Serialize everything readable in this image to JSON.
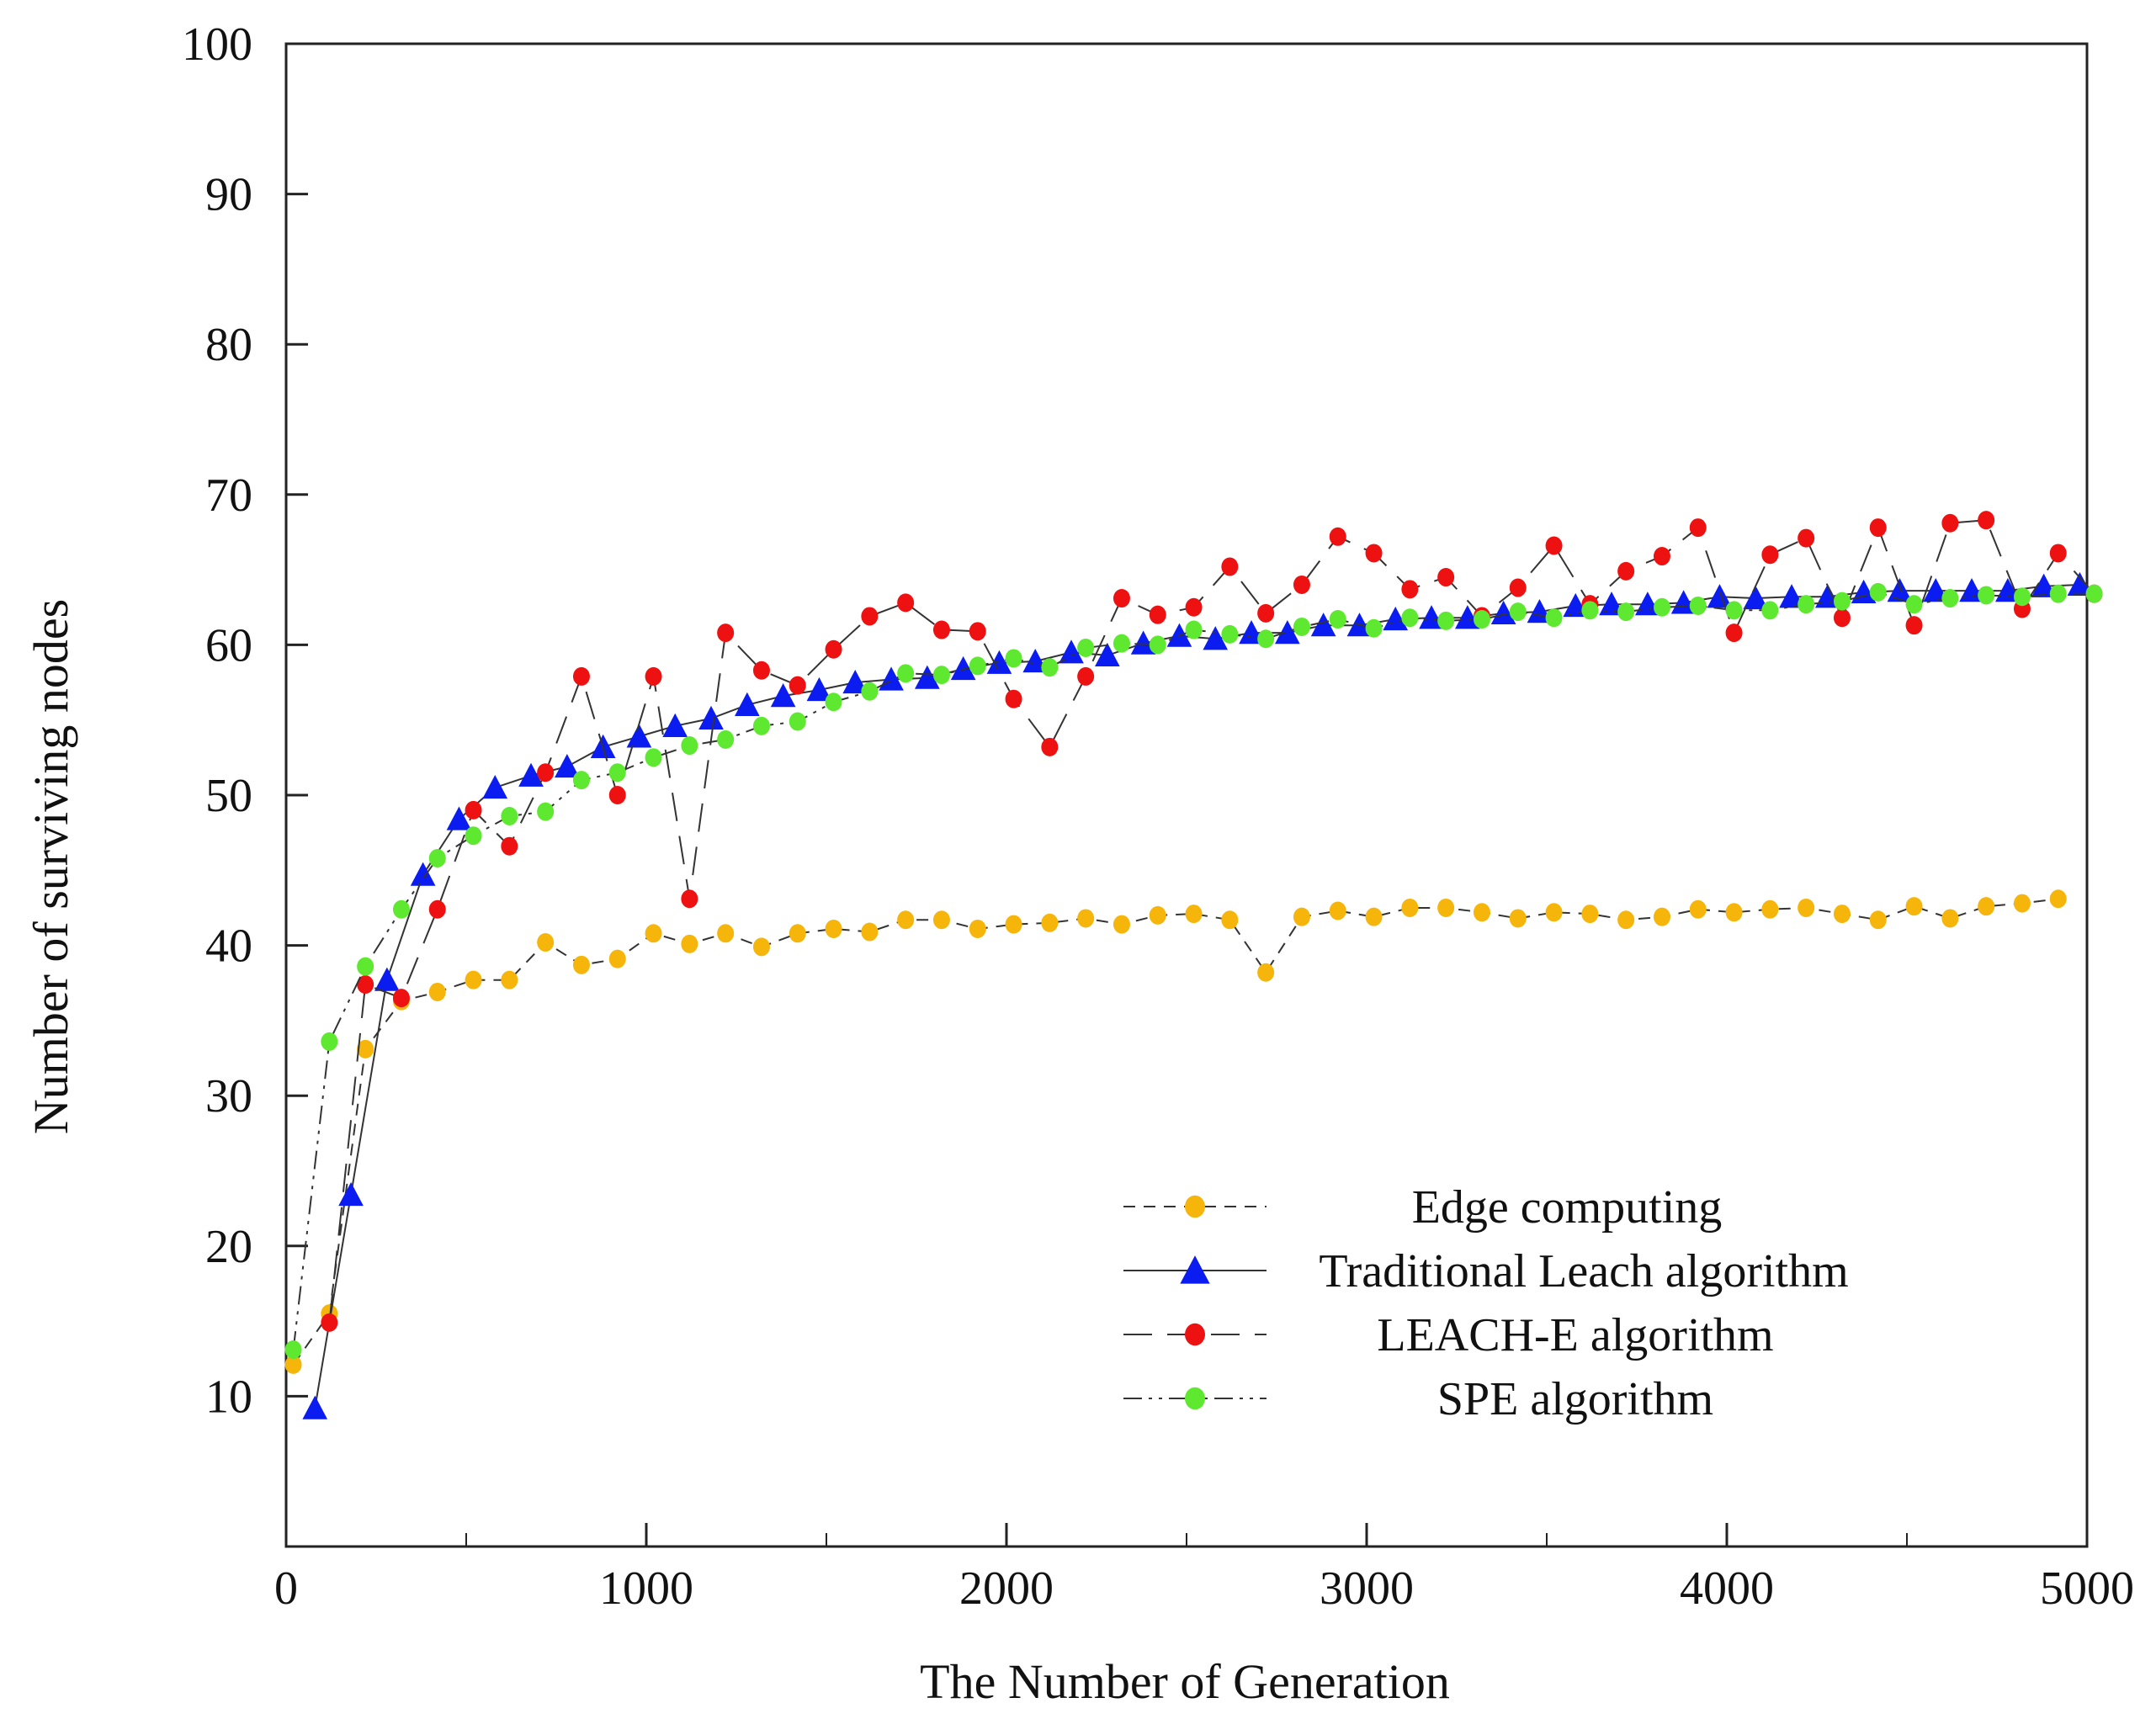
{
  "chart_data": {
    "type": "line",
    "title": "",
    "xlabel": "The Number of Generation",
    "ylabel": "Number of surviving nodes",
    "xlim": [
      0,
      5000
    ],
    "ylim": [
      0,
      100
    ],
    "xticks": [
      0,
      1000,
      2000,
      3000,
      4000,
      5000
    ],
    "yticks": [
      10,
      20,
      30,
      40,
      50,
      60,
      70,
      80,
      90,
      100
    ],
    "xtick_labels": [
      "0",
      "1000",
      "2000",
      "3000",
      "4000",
      "5000"
    ],
    "ytick_labels": [
      "10",
      "20",
      "30",
      "40",
      "50",
      "60",
      "70",
      "80",
      "90",
      "100"
    ],
    "grid": false,
    "legend_position": "lower-right",
    "series": [
      {
        "name": "Edge computing",
        "color": "#f5b50a",
        "marker": "circle",
        "dash": "dashed",
        "x": [
          20,
          120,
          220,
          320,
          420,
          520,
          620,
          720,
          820,
          920,
          1020,
          1120,
          1220,
          1320,
          1420,
          1520,
          1620,
          1720,
          1820,
          1920,
          2020,
          2120,
          2220,
          2320,
          2420,
          2520,
          2620,
          2720,
          2820,
          2920,
          3020,
          3120,
          3220,
          3320,
          3420,
          3520,
          3620,
          3720,
          3820,
          3920,
          4020,
          4120,
          4220,
          4320,
          4420,
          4520,
          4620,
          4720,
          4820,
          4920
        ],
        "values": [
          12.1,
          15.5,
          33.1,
          36.3,
          36.9,
          37.7,
          37.7,
          40.2,
          38.7,
          39.1,
          40.8,
          40.1,
          40.8,
          39.9,
          40.8,
          41.1,
          40.9,
          41.7,
          41.7,
          41.1,
          41.4,
          41.5,
          41.8,
          41.4,
          42.0,
          42.1,
          41.7,
          38.2,
          41.9,
          42.3,
          41.9,
          42.5,
          42.5,
          42.2,
          41.8,
          42.2,
          42.1,
          41.7,
          41.9,
          42.4,
          42.2,
          42.4,
          42.5,
          42.1,
          41.7,
          42.6,
          41.8,
          42.6,
          42.8,
          43.1
        ]
      },
      {
        "name": "Traditional Leach algorithm",
        "color": "#0a1cf0",
        "marker": "triangle",
        "dash": "solid",
        "x": [
          80,
          180,
          280,
          380,
          480,
          580,
          680,
          780,
          880,
          980,
          1080,
          1180,
          1280,
          1380,
          1480,
          1580,
          1680,
          1780,
          1880,
          1980,
          2080,
          2180,
          2280,
          2380,
          2480,
          2580,
          2680,
          2780,
          2880,
          2980,
          3080,
          3180,
          3280,
          3380,
          3480,
          3580,
          3680,
          3780,
          3880,
          3980,
          4080,
          4180,
          4280,
          4380,
          4480,
          4580,
          4680,
          4780,
          4880,
          4980
        ],
        "values": [
          9.2,
          23.4,
          37.7,
          44.7,
          48.4,
          50.5,
          51.3,
          51.9,
          53.2,
          53.9,
          54.6,
          55.1,
          56.0,
          56.6,
          57.0,
          57.5,
          57.7,
          57.8,
          58.4,
          58.8,
          58.9,
          59.5,
          59.3,
          60.1,
          60.6,
          60.4,
          60.8,
          60.8,
          61.3,
          61.3,
          61.7,
          61.8,
          61.8,
          62.1,
          62.2,
          62.6,
          62.7,
          62.7,
          62.8,
          63.2,
          63.1,
          63.2,
          63.2,
          63.5,
          63.6,
          63.6,
          63.6,
          63.6,
          63.9,
          64.0
        ]
      },
      {
        "name": "LEACH-E algorithm",
        "color": "#ee1111",
        "marker": "circle",
        "dash": "long-dash",
        "x": [
          120,
          220,
          320,
          420,
          520,
          620,
          720,
          820,
          920,
          1020,
          1120,
          1220,
          1320,
          1420,
          1520,
          1620,
          1720,
          1820,
          1920,
          2020,
          2120,
          2220,
          2320,
          2420,
          2520,
          2620,
          2720,
          2820,
          2920,
          3020,
          3120,
          3220,
          3320,
          3420,
          3520,
          3620,
          3720,
          3820,
          3920,
          4020,
          4120,
          4220,
          4320,
          4420,
          4520,
          4620,
          4720,
          4820,
          4920,
          5020
        ],
        "values": [
          14.9,
          37.4,
          36.5,
          42.4,
          49.0,
          46.6,
          51.5,
          57.9,
          50.0,
          57.9,
          43.1,
          60.8,
          58.3,
          57.3,
          59.7,
          61.9,
          62.8,
          61.0,
          60.9,
          56.4,
          53.2,
          57.9,
          63.1,
          62.0,
          62.5,
          65.2,
          62.1,
          64.0,
          67.2,
          66.1,
          63.7,
          64.5,
          61.9,
          63.8,
          66.6,
          62.7,
          64.9,
          65.9,
          67.8,
          60.8,
          66.0,
          67.1,
          61.8,
          67.8,
          61.3,
          68.1,
          68.3,
          62.4,
          66.1,
          63.4
        ]
      },
      {
        "name": "SPE algorithm",
        "color": "#5ee830",
        "marker": "circle",
        "dash": "dash-dot-dot",
        "x": [
          20,
          120,
          220,
          320,
          420,
          520,
          620,
          720,
          820,
          920,
          1020,
          1120,
          1220,
          1320,
          1420,
          1520,
          1620,
          1720,
          1820,
          1920,
          2020,
          2120,
          2220,
          2320,
          2420,
          2520,
          2620,
          2720,
          2820,
          2920,
          3020,
          3120,
          3220,
          3320,
          3420,
          3520,
          3620,
          3720,
          3820,
          3920,
          4020,
          4120,
          4220,
          4320,
          4420,
          4520,
          4620,
          4720,
          4820,
          4920,
          5020
        ],
        "values": [
          13.1,
          33.6,
          38.6,
          42.4,
          45.8,
          47.3,
          48.6,
          48.9,
          51.0,
          51.5,
          52.5,
          53.3,
          53.7,
          54.6,
          54.9,
          56.2,
          56.9,
          58.1,
          58.0,
          58.6,
          59.1,
          58.5,
          59.8,
          60.1,
          60.0,
          61.0,
          60.7,
          60.4,
          61.2,
          61.7,
          61.1,
          61.8,
          61.6,
          61.7,
          62.2,
          61.8,
          62.3,
          62.2,
          62.5,
          62.6,
          62.3,
          62.3,
          62.7,
          62.9,
          63.5,
          62.7,
          63.1,
          63.3,
          63.2,
          63.4,
          63.4
        ]
      }
    ]
  }
}
